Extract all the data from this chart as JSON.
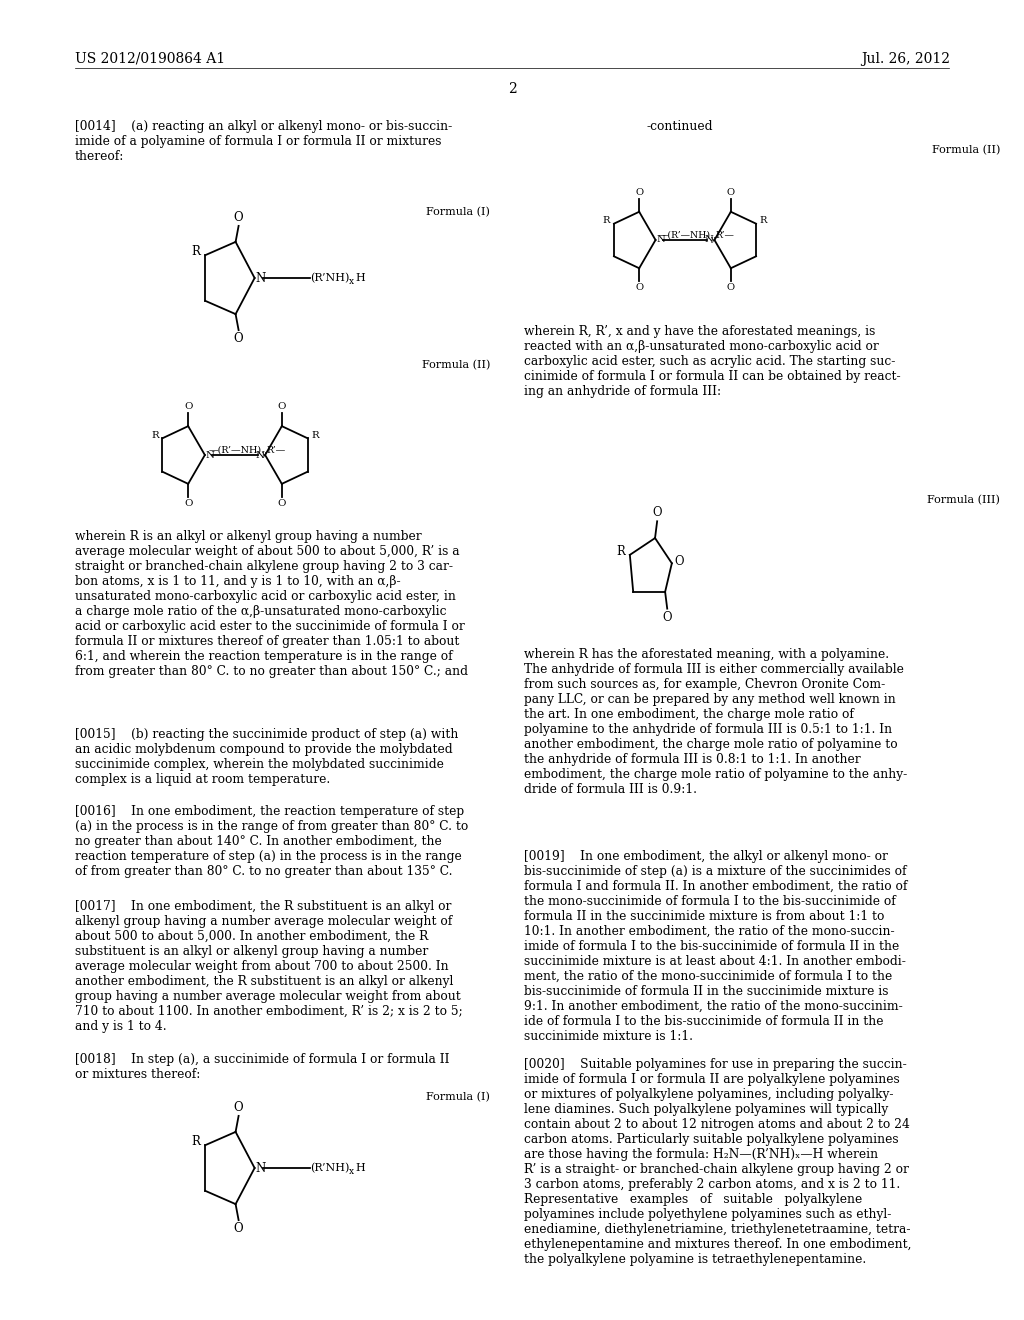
{
  "background_color": "#ffffff",
  "page_header_left": "US 2012/0190864 A1",
  "page_header_right": "Jul. 26, 2012",
  "page_number": "2",
  "header_fontsize": 10,
  "body_fontsize": 8.8,
  "small_fontsize": 8.0,
  "paragraph_0014": "[0014]    (a) reacting an alkyl or alkenyl mono- or bis-succin-\nimide of a polyamine of formula I or formula II or mixtures\nthereof:",
  "formula_I_label": "Formula (I)",
  "formula_II_label": "Formula (II)",
  "formula_III_label": "Formula (III)",
  "continued_label": "-continued",
  "paragraph_wherein_left": "wherein R is an alkyl or alkenyl group having a number\naverage molecular weight of about 500 to about 5,000, R’ is a\nstraight or branched-chain alkylene group having 2 to 3 car-\nbon atoms, x is 1 to 11, and y is 1 to 10, with an α,β-\nunsaturated mono-carboxylic acid or carboxylic acid ester, in\na charge mole ratio of the α,β-unsaturated mono-carboxylic\nacid or carboxylic acid ester to the succinimide of formula I or\nformula II or mixtures thereof of greater than 1.05:1 to about\n6:1, and wherein the reaction temperature is in the range of\nfrom greater than 80° C. to no greater than about 150° C.; and",
  "paragraph_0015": "[0015]    (b) reacting the succinimide product of step (a) with\nan acidic molybdenum compound to provide the molybdated\nsuccinimide complex, wherein the molybdated succinimide\ncomplex is a liquid at room temperature.",
  "paragraph_0016": "[0016]    In one embodiment, the reaction temperature of step\n(a) in the process is in the range of from greater than 80° C. to\nno greater than about 140° C. In another embodiment, the\nreaction temperature of step (a) in the process is in the range\nof from greater than 80° C. to no greater than about 135° C.",
  "paragraph_0017": "[0017]    In one embodiment, the R substituent is an alkyl or\nalkenyl group having a number average molecular weight of\nabout 500 to about 5,000. In another embodiment, the R\nsubstituent is an alkyl or alkenyl group having a number\naverage molecular weight from about 700 to about 2500. In\nanother embodiment, the R substituent is an alkyl or alkenyl\ngroup having a number average molecular weight from about\n710 to about 1100. In another embodiment, R’ is 2; x is 2 to 5;\nand y is 1 to 4.",
  "paragraph_0018": "[0018]    In step (a), a succinimide of formula I or formula II\nor mixtures thereof:",
  "paragraph_wherein_right": "wherein R, R’, x and y have the aforestated meanings, is\nreacted with an α,β-unsaturated mono-carboxylic acid or\ncarboxylic acid ester, such as acrylic acid. The starting suc-\ncinimide of formula I or formula II can be obtained by react-\ning an anhydride of formula III:",
  "paragraph_wherein_right2": "wherein R has the aforestated meaning, with a polyamine.\nThe anhydride of formula III is either commercially available\nfrom such sources as, for example, Chevron Oronite Com-\npany LLC, or can be prepared by any method well known in\nthe art. In one embodiment, the charge mole ratio of\npolyamine to the anhydride of formula III is 0.5:1 to 1:1. In\nanother embodiment, the charge mole ratio of polyamine to\nthe anhydride of formula III is 0.8:1 to 1:1. In another\nembodiment, the charge mole ratio of polyamine to the anhy-\ndride of formula III is 0.9:1.",
  "paragraph_0019": "[0019]    In one embodiment, the alkyl or alkenyl mono- or\nbis-succinimide of step (a) is a mixture of the succinimides of\nformula I and formula II. In another embodiment, the ratio of\nthe mono-succinimide of formula I to the bis-succinimide of\nformula II in the succinimide mixture is from about 1:1 to\n10:1. In another embodiment, the ratio of the mono-succin-\nimide of formula I to the bis-succinimide of formula II in the\nsuccinimide mixture is at least about 4:1. In another embodi-\nment, the ratio of the mono-succinimide of formula I to the\nbis-succinimide of formula II in the succinimide mixture is\n9:1. In another embodiment, the ratio of the mono-succinim-\nide of formula I to the bis-succinimide of formula II in the\nsuccinimide mixture is 1:1.",
  "paragraph_0020": "[0020]    Suitable polyamines for use in preparing the succin-\nimide of formula I or formula II are polyalkylene polyamines\nor mixtures of polyalkylene polyamines, including polyalky-\nlene diamines. Such polyalkylene polyamines will typically\ncontain about 2 to about 12 nitrogen atoms and about 2 to 24\ncarbon atoms. Particularly suitable polyalkylene polyamines\nare those having the formula: H₂N—(R’NH)ₓ—H wherein\nR’ is a straight- or branched-chain alkylene group having 2 or\n3 carbon atoms, preferably 2 carbon atoms, and x is 2 to 11.\nRepresentative   examples   of   suitable   polyalkylene\npolyamines include polyethylene polyamines such as ethyl-\nenediamine, diethylenetriamine, triethylenetetraamine, tetra-\nethylenepentamine and mixtures thereof. In one embodiment,\nthe polyalkylene polyamine is tetraethylenepentamine."
}
